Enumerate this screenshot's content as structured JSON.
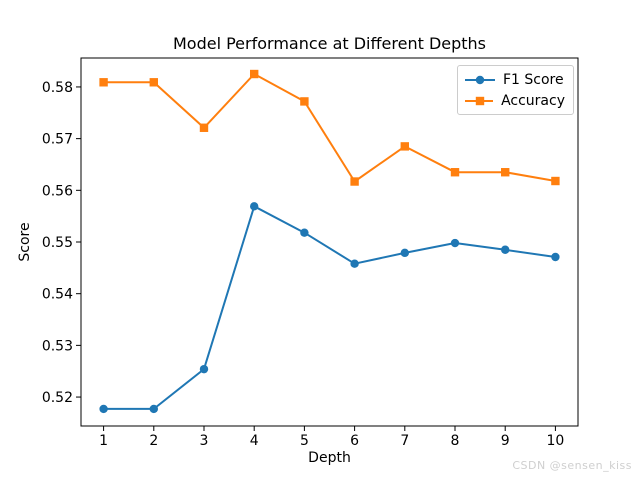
{
  "title": "Model Performance at Different Depths",
  "watermark": "CSDN @sensen_kiss",
  "chart_data": {
    "type": "line",
    "title": "Model Performance at Different Depths",
    "xlabel": "Depth",
    "ylabel": "Score",
    "x": [
      1,
      2,
      3,
      4,
      5,
      6,
      7,
      8,
      9,
      10
    ],
    "series": [
      {
        "name": "F1 Score",
        "color": "#1f77b4",
        "marker": "circle",
        "values": [
          0.5177,
          0.5177,
          0.5254,
          0.5569,
          0.5518,
          0.5458,
          0.5479,
          0.5498,
          0.5485,
          0.5471
        ]
      },
      {
        "name": "Accuracy",
        "color": "#ff7f0e",
        "marker": "square",
        "values": [
          0.5809,
          0.5809,
          0.5721,
          0.5825,
          0.5772,
          0.5617,
          0.5685,
          0.5635,
          0.5635,
          0.5618
        ]
      }
    ],
    "xlim": [
      0.55,
      10.45
    ],
    "ylim": [
      0.5144,
      0.5856
    ],
    "xticks": [
      1,
      2,
      3,
      4,
      5,
      6,
      7,
      8,
      9,
      10
    ],
    "xtick_labels": [
      "1",
      "2",
      "3",
      "4",
      "5",
      "6",
      "7",
      "8",
      "9",
      "10"
    ],
    "yticks": [
      0.52,
      0.53,
      0.54,
      0.55,
      0.56,
      0.57,
      0.58
    ],
    "ytick_labels": [
      "0.52",
      "0.53",
      "0.54",
      "0.55",
      "0.56",
      "0.57",
      "0.58"
    ],
    "grid": false,
    "legend_position": "upper right"
  },
  "legend": {
    "items": [
      {
        "label": "F1 Score"
      },
      {
        "label": "Accuracy"
      }
    ]
  }
}
